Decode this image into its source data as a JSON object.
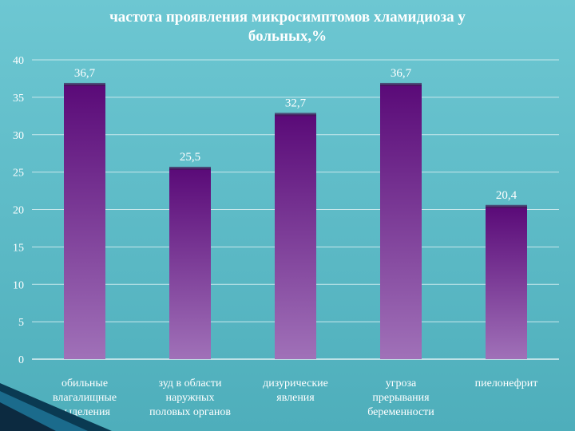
{
  "chart_data": {
    "type": "bar",
    "title": "частота проявления микросимптомов хламидиоза у больных,%",
    "categories": [
      [
        "обильные",
        "влагалищные",
        "выделения"
      ],
      [
        "зуд в области",
        "наружных",
        "половых органов"
      ],
      [
        "дизурические",
        "явления"
      ],
      [
        "угроза",
        "прерывания",
        "беременности"
      ],
      [
        "пиелонефрит"
      ]
    ],
    "values": [
      36.7,
      25.5,
      32.7,
      36.7,
      20.4
    ],
    "data_labels": [
      "36,7",
      "25,5",
      "32,7",
      "36,7",
      "20,4"
    ],
    "yticks": [
      "0",
      "5",
      "10",
      "15",
      "20",
      "25",
      "30",
      "35",
      "40"
    ],
    "ylim": [
      0,
      40
    ],
    "grid": true,
    "legend": "none",
    "colors": {
      "bar_top": "#5a0a78",
      "bar_bottom": "#a071b8",
      "bar_cap": "#3e1a52",
      "text": "#ffffff",
      "grid": "#c8e8ec"
    }
  }
}
